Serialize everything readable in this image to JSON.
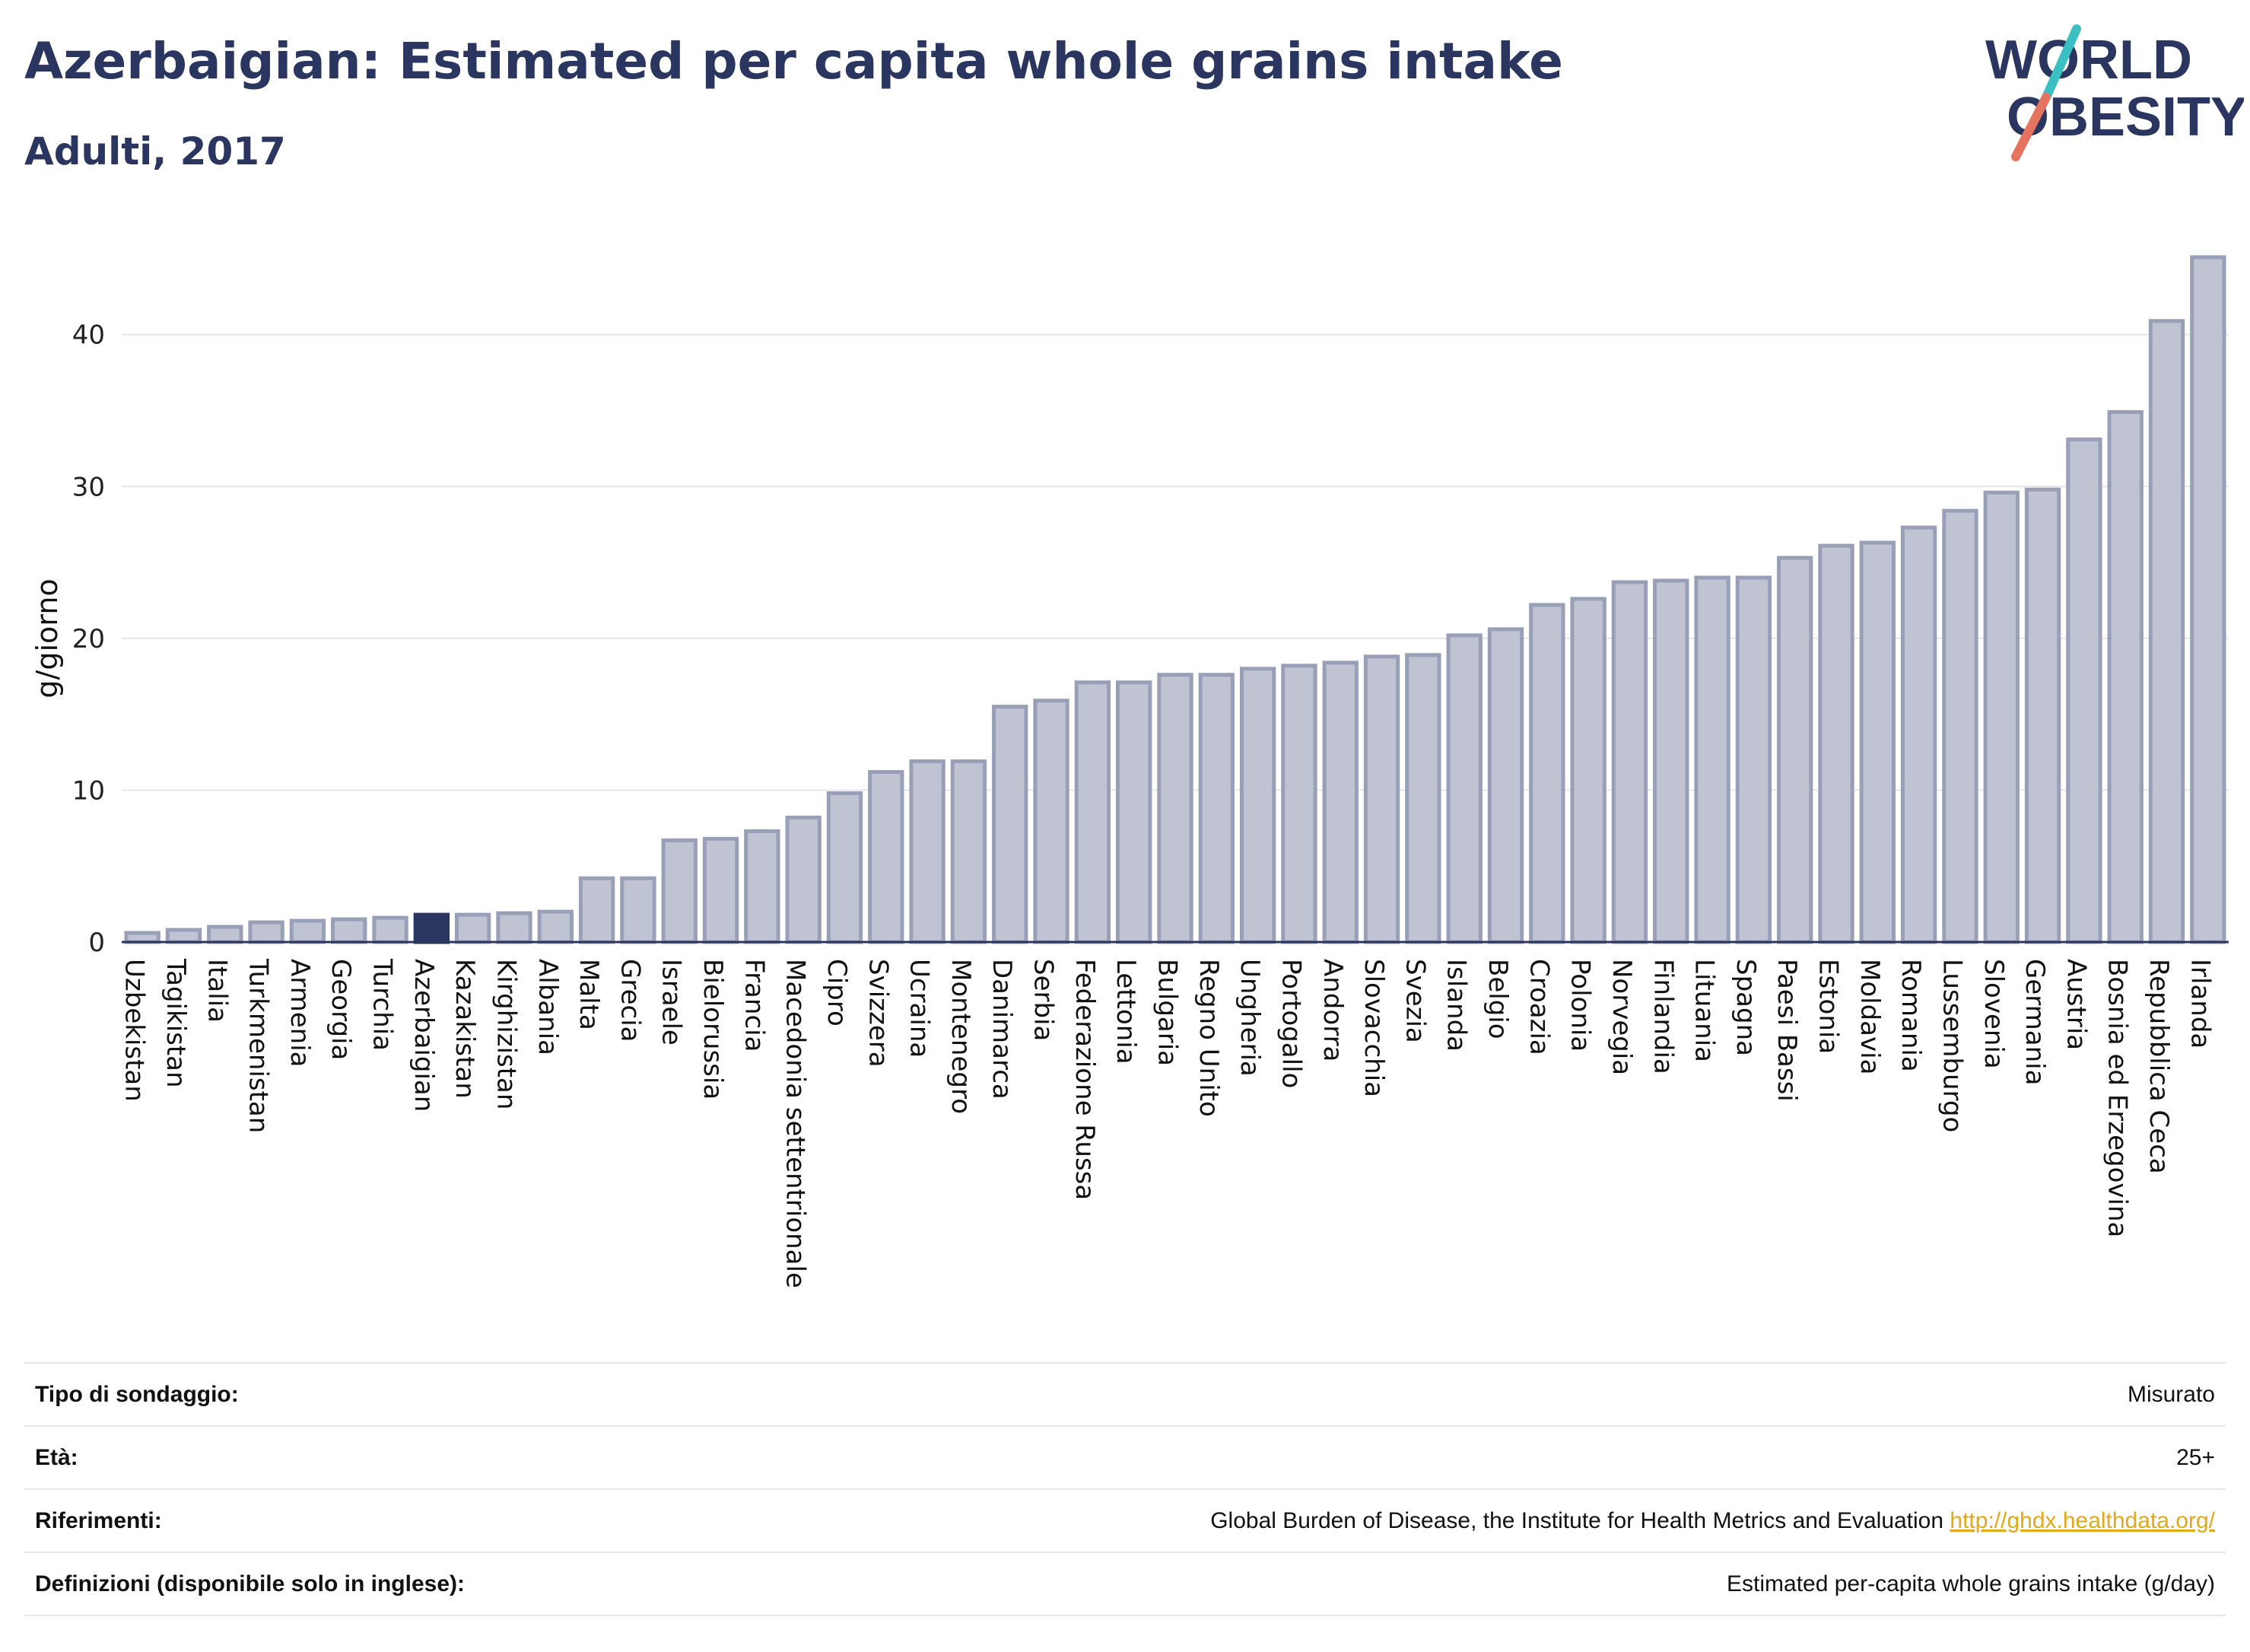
{
  "header": {
    "title": "Azerbaigian: Estimated per capita whole grains intake",
    "subtitle": "Adulti, 2017"
  },
  "logo": {
    "line1": "WORLD",
    "line2": "OBESITY"
  },
  "colors": {
    "bar": "#bfc3d2",
    "bar_border": "#9a9fb8",
    "highlight": "#2a3560",
    "grid": "#e6e6ea",
    "axis": "#2a3560",
    "logo_teal": "#3bbfc2",
    "logo_coral": "#e5735f",
    "link": "#e3a81a"
  },
  "chart_data": {
    "type": "bar",
    "ylabel": "g/giorno",
    "ylim": [
      0,
      46
    ],
    "yticks": [
      0,
      10,
      20,
      30,
      40
    ],
    "grid": true,
    "highlight_category": "Azerbaigian",
    "categories": [
      "Uzbekistan",
      "Tagikistan",
      "Italia",
      "Turkmenistan",
      "Armenia",
      "Georgia",
      "Turchia",
      "Azerbaigian",
      "Kazakistan",
      "Kirghizistan",
      "Albania",
      "Malta",
      "Grecia",
      "Israele",
      "Bielorussia",
      "Francia",
      "Macedonia settentrionale",
      "Cipro",
      "Svizzera",
      "Ucraina",
      "Montenegro",
      "Danimarca",
      "Serbia",
      "Federazione Russa",
      "Lettonia",
      "Bulgaria",
      "Regno Unito",
      "Ungheria",
      "Portogallo",
      "Andorra",
      "Slovacchia",
      "Svezia",
      "Islanda",
      "Belgio",
      "Croazia",
      "Polonia",
      "Norvegia",
      "Finlandia",
      "Lituania",
      "Spagna",
      "Paesi Bassi",
      "Estonia",
      "Moldavia",
      "Romania",
      "Lussemburgo",
      "Slovenia",
      "Germania",
      "Austria",
      "Bosnia ed Erzegovina",
      "Repubblica Ceca",
      "Irlanda"
    ],
    "values": [
      0.6,
      0.8,
      1.0,
      1.3,
      1.4,
      1.5,
      1.6,
      1.8,
      1.8,
      1.9,
      2.0,
      4.2,
      4.2,
      6.7,
      6.8,
      7.3,
      8.2,
      9.8,
      11.2,
      11.9,
      11.9,
      15.5,
      15.9,
      17.1,
      17.1,
      17.6,
      17.6,
      18.0,
      18.2,
      18.4,
      18.8,
      18.9,
      20.2,
      20.6,
      22.2,
      22.6,
      23.7,
      23.8,
      24.0,
      24.0,
      25.3,
      26.1,
      26.3,
      27.3,
      28.4,
      29.6,
      29.8,
      33.1,
      34.9,
      40.9,
      45.1
    ]
  },
  "info": {
    "rows": [
      {
        "label": "Tipo di sondaggio:",
        "value": "Misurato"
      },
      {
        "label": "Età:",
        "value": "25+"
      },
      {
        "label": "Riferimenti:",
        "value": "Global Burden of Disease, the Institute for Health Metrics and Evaluation",
        "link": "http://ghdx.healthdata.org/"
      },
      {
        "label": "Definizioni (disponibile solo in inglese):",
        "value": "Estimated per-capita whole grains intake (g/day)"
      }
    ]
  }
}
